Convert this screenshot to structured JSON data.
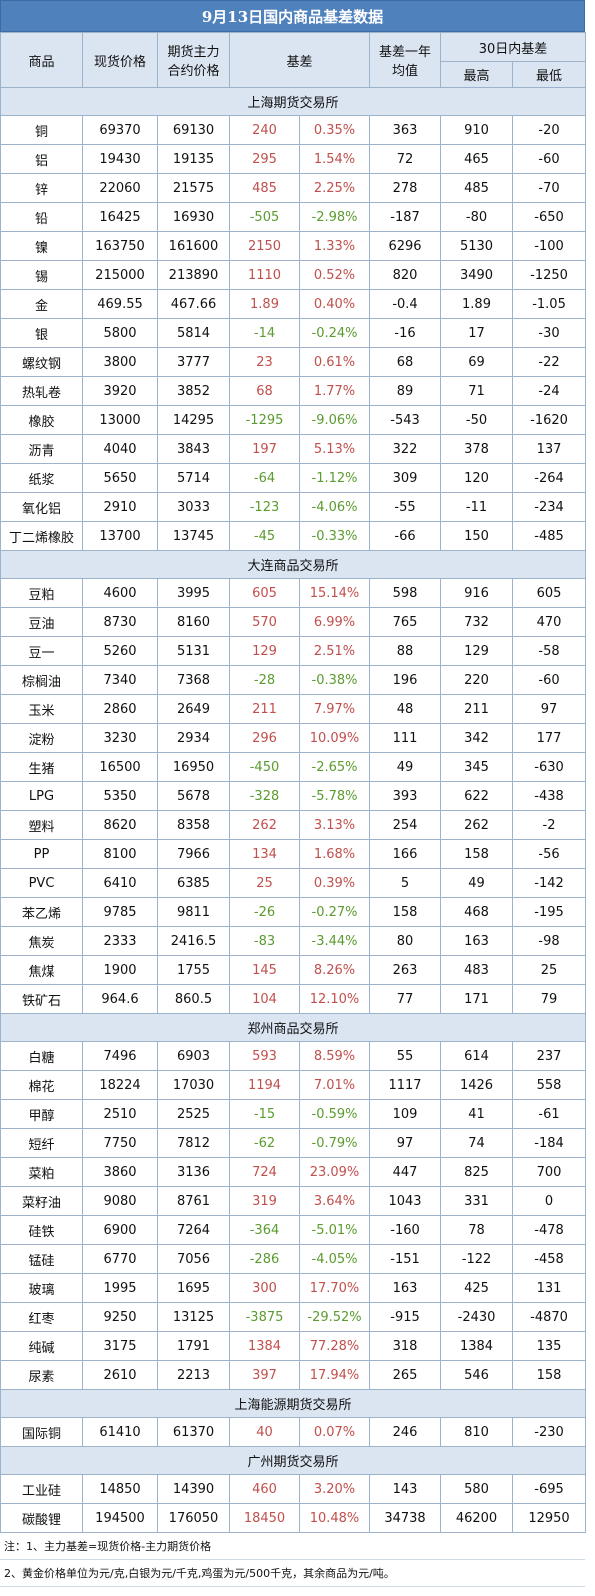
{
  "title": "9月13日国内商品基差数据",
  "header": {
    "col_name": "商品",
    "col_spot": "现货价格",
    "col_main_1": "期货主力",
    "col_main_2": "合约价格",
    "col_basis": "基差",
    "col_avg_1": "基差一年",
    "col_avg_2": "均值",
    "col_30d": "30日内基差",
    "col_high": "最高",
    "col_low": "最低"
  },
  "colors": {
    "positive": "#c0504d",
    "negative": "#5b9b2f",
    "header_bg": "#dbe5f1",
    "title_bg": "#4f81bd"
  },
  "sections": [
    {
      "name": "上海期货交易所",
      "rows": [
        [
          "铜",
          "69370",
          "69130",
          "240",
          "0.35%",
          "363",
          "910",
          "-20"
        ],
        [
          "铝",
          "19430",
          "19135",
          "295",
          "1.54%",
          "72",
          "465",
          "-60"
        ],
        [
          "锌",
          "22060",
          "21575",
          "485",
          "2.25%",
          "278",
          "485",
          "-70"
        ],
        [
          "铅",
          "16425",
          "16930",
          "-505",
          "-2.98%",
          "-187",
          "-80",
          "-650"
        ],
        [
          "镍",
          "163750",
          "161600",
          "2150",
          "1.33%",
          "6296",
          "5130",
          "-100"
        ],
        [
          "锡",
          "215000",
          "213890",
          "1110",
          "0.52%",
          "820",
          "3490",
          "-1250"
        ],
        [
          "金",
          "469.55",
          "467.66",
          "1.89",
          "0.40%",
          "-0.4",
          "1.89",
          "-1.05"
        ],
        [
          "银",
          "5800",
          "5814",
          "-14",
          "-0.24%",
          "-16",
          "17",
          "-30"
        ],
        [
          "螺纹钢",
          "3800",
          "3777",
          "23",
          "0.61%",
          "68",
          "69",
          "-22"
        ],
        [
          "热轧卷",
          "3920",
          "3852",
          "68",
          "1.77%",
          "89",
          "71",
          "-24"
        ],
        [
          "橡胶",
          "13000",
          "14295",
          "-1295",
          "-9.06%",
          "-543",
          "-50",
          "-1620"
        ],
        [
          "沥青",
          "4040",
          "3843",
          "197",
          "5.13%",
          "322",
          "378",
          "137"
        ],
        [
          "纸浆",
          "5650",
          "5714",
          "-64",
          "-1.12%",
          "309",
          "120",
          "-264"
        ],
        [
          "氧化铝",
          "2910",
          "3033",
          "-123",
          "-4.06%",
          "-55",
          "-11",
          "-234"
        ],
        [
          "丁二烯橡胶",
          "13700",
          "13745",
          "-45",
          "-0.33%",
          "-66",
          "150",
          "-485"
        ]
      ]
    },
    {
      "name": "大连商品交易所",
      "rows": [
        [
          "豆粕",
          "4600",
          "3995",
          "605",
          "15.14%",
          "598",
          "916",
          "605"
        ],
        [
          "豆油",
          "8730",
          "8160",
          "570",
          "6.99%",
          "765",
          "732",
          "470"
        ],
        [
          "豆一",
          "5260",
          "5131",
          "129",
          "2.51%",
          "88",
          "129",
          "-58"
        ],
        [
          "棕榈油",
          "7340",
          "7368",
          "-28",
          "-0.38%",
          "196",
          "220",
          "-60"
        ],
        [
          "玉米",
          "2860",
          "2649",
          "211",
          "7.97%",
          "48",
          "211",
          "97"
        ],
        [
          "淀粉",
          "3230",
          "2934",
          "296",
          "10.09%",
          "111",
          "342",
          "177"
        ],
        [
          "生猪",
          "16500",
          "16950",
          "-450",
          "-2.65%",
          "49",
          "345",
          "-630"
        ],
        [
          "LPG",
          "5350",
          "5678",
          "-328",
          "-5.78%",
          "393",
          "622",
          "-438"
        ],
        [
          "塑料",
          "8620",
          "8358",
          "262",
          "3.13%",
          "254",
          "262",
          "-2"
        ],
        [
          "PP",
          "8100",
          "7966",
          "134",
          "1.68%",
          "166",
          "158",
          "-56"
        ],
        [
          "PVC",
          "6410",
          "6385",
          "25",
          "0.39%",
          "5",
          "49",
          "-142"
        ],
        [
          "苯乙烯",
          "9785",
          "9811",
          "-26",
          "-0.27%",
          "158",
          "468",
          "-195"
        ],
        [
          "焦炭",
          "2333",
          "2416.5",
          "-83",
          "-3.44%",
          "80",
          "163",
          "-98"
        ],
        [
          "焦煤",
          "1900",
          "1755",
          "145",
          "8.26%",
          "263",
          "483",
          "25"
        ],
        [
          "铁矿石",
          "964.6",
          "860.5",
          "104",
          "12.10%",
          "77",
          "171",
          "79"
        ]
      ]
    },
    {
      "name": "郑州商品交易所",
      "rows": [
        [
          "白糖",
          "7496",
          "6903",
          "593",
          "8.59%",
          "55",
          "614",
          "237"
        ],
        [
          "棉花",
          "18224",
          "17030",
          "1194",
          "7.01%",
          "1117",
          "1426",
          "558"
        ],
        [
          "甲醇",
          "2510",
          "2525",
          "-15",
          "-0.59%",
          "109",
          "41",
          "-61"
        ],
        [
          "短纤",
          "7750",
          "7812",
          "-62",
          "-0.79%",
          "97",
          "74",
          "-184"
        ],
        [
          "菜粕",
          "3860",
          "3136",
          "724",
          "23.09%",
          "447",
          "825",
          "700"
        ],
        [
          "菜籽油",
          "9080",
          "8761",
          "319",
          "3.64%",
          "1043",
          "331",
          "0"
        ],
        [
          "硅铁",
          "6900",
          "7264",
          "-364",
          "-5.01%",
          "-160",
          "78",
          "-478"
        ],
        [
          "锰硅",
          "6770",
          "7056",
          "-286",
          "-4.05%",
          "-151",
          "-122",
          "-458"
        ],
        [
          "玻璃",
          "1995",
          "1695",
          "300",
          "17.70%",
          "163",
          "425",
          "131"
        ],
        [
          "红枣",
          "9250",
          "13125",
          "-3875",
          "-29.52%",
          "-915",
          "-2430",
          "-4870"
        ],
        [
          "纯碱",
          "3175",
          "1791",
          "1384",
          "77.28%",
          "318",
          "1384",
          "135"
        ],
        [
          "尿素",
          "2610",
          "2213",
          "397",
          "17.94%",
          "265",
          "546",
          "158"
        ]
      ]
    },
    {
      "name": "上海能源期货交易所",
      "rows": [
        [
          "国际铜",
          "61410",
          "61370",
          "40",
          "0.07%",
          "246",
          "810",
          "-230"
        ]
      ]
    },
    {
      "name": "广州期货交易所",
      "rows": [
        [
          "工业硅",
          "14850",
          "14390",
          "460",
          "3.20%",
          "143",
          "580",
          "-695"
        ],
        [
          "碳酸锂",
          "194500",
          "176050",
          "18450",
          "10.48%",
          "34738",
          "46200",
          "12950"
        ]
      ]
    }
  ],
  "notes": [
    "注：1、主力基差=现货价格-主力期货价格",
    "2、黄金价格单位为元/克,白银为元/千克,鸡蛋为元/500千克，其余商品为元/吨。"
  ]
}
